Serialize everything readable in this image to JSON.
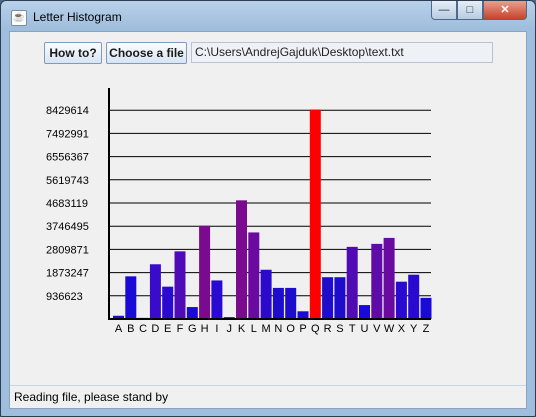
{
  "window": {
    "title": "Letter Histogram",
    "controls": {
      "minimize": "—",
      "maximize": "□",
      "close": "✕"
    }
  },
  "toolbar": {
    "how_label": "How to?",
    "choose_label": "Choose a file",
    "path_value": "C:\\Users\\AndrejGajduk\\Desktop\\text.txt"
  },
  "chart_data": {
    "type": "bar",
    "categories": [
      "A",
      "B",
      "C",
      "D",
      "E",
      "F",
      "G",
      "H",
      "I",
      "J",
      "K",
      "L",
      "M",
      "N",
      "O",
      "P",
      "Q",
      "R",
      "S",
      "T",
      "U",
      "V",
      "W",
      "X",
      "Y",
      "Z"
    ],
    "values": [
      130000,
      1715000,
      45000,
      2200000,
      1300000,
      2720000,
      480000,
      3750000,
      1550000,
      75000,
      4770000,
      3480000,
      1980000,
      1250000,
      1250000,
      310000,
      8420000,
      1680000,
      1680000,
      2900000,
      560000,
      3020000,
      3260000,
      1500000,
      1780000,
      850000
    ],
    "yticks": [
      "936623",
      "1873247",
      "2809871",
      "3746495",
      "4683119",
      "5619743",
      "6556367",
      "7492991",
      "8429614"
    ],
    "ylim": [
      0,
      9366238
    ],
    "colors": [
      "#1e0ccc",
      "#1a0ad6",
      "#1a0ad6",
      "#3a0bc8",
      "#2a0ad0",
      "#4f0bb8",
      "#1a0ad6",
      "#7a0a8e",
      "#2a0ad0",
      "#1a0ad6",
      "#7a0a8e",
      "#6a0aa0",
      "#2c0acc",
      "#1e0ccc",
      "#1e0ccc",
      "#1a0ad6",
      "#ff0000",
      "#1e0ccc",
      "#1e0ccc",
      "#500bb4",
      "#1a0ad6",
      "#5e0ba8",
      "#6a0aa0",
      "#2a0ad0",
      "#2a0ad0",
      "#1a0ad6"
    ],
    "grid": true,
    "legend": "none"
  },
  "status": {
    "text": "Reading file, please stand by"
  }
}
